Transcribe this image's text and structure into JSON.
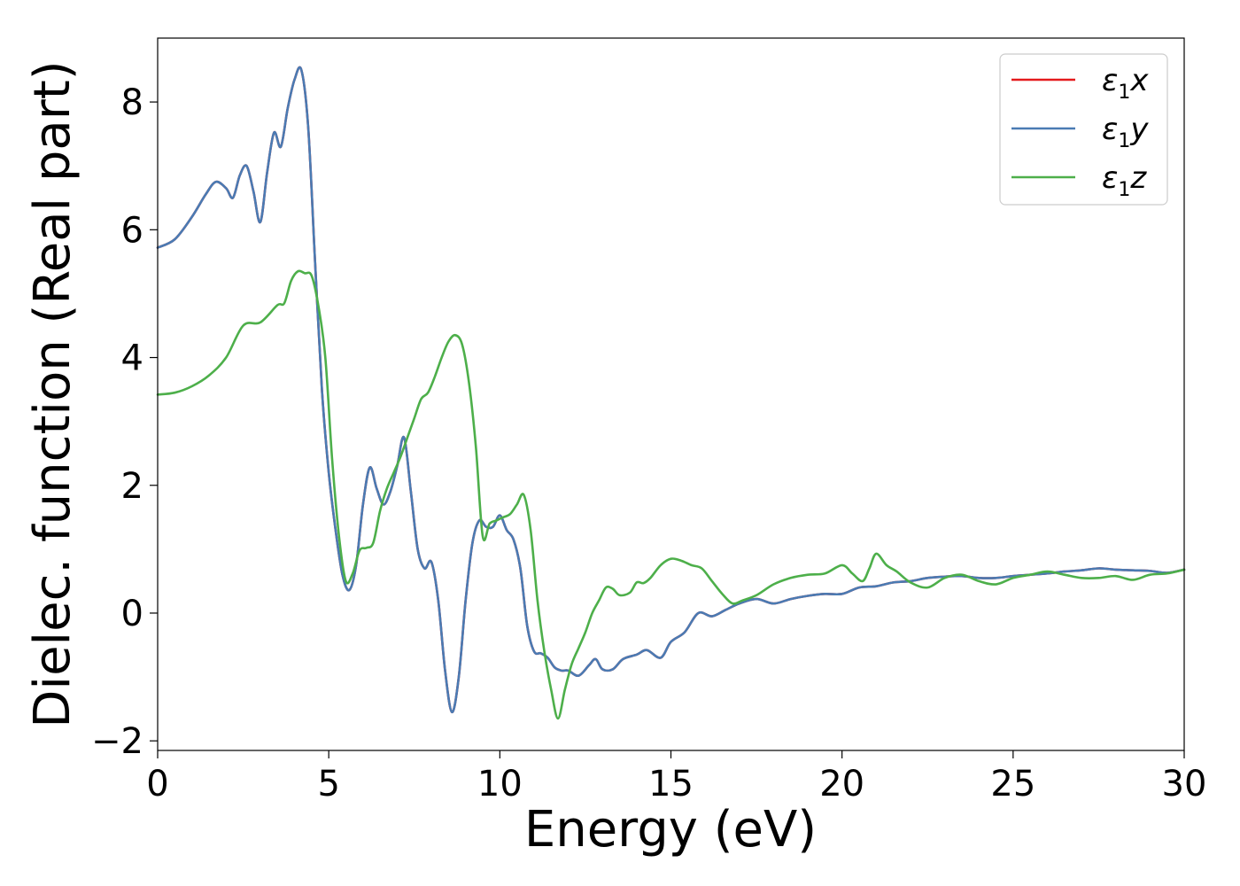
{
  "chart_data": {
    "type": "line",
    "title": "",
    "xlabel": "Energy (eV)",
    "ylabel": "Dielec. function (Real part)",
    "xlim": [
      0,
      30
    ],
    "ylim": [
      -2.15,
      9.0
    ],
    "xticks": [
      0,
      5,
      10,
      15,
      20,
      25,
      30
    ],
    "yticks": [
      -2,
      0,
      2,
      4,
      6,
      8
    ],
    "xtick_labels": [
      "0",
      "5",
      "10",
      "15",
      "20",
      "25",
      "30"
    ],
    "ytick_labels": [
      "−2",
      "0",
      "2",
      "4",
      "6",
      "8"
    ],
    "grid": false,
    "legend_position": "top-right",
    "series": [
      {
        "name": "ε1x",
        "color": "#e41a1c",
        "x": [
          0,
          0.5,
          1.0,
          1.4,
          1.7,
          2.0,
          2.2,
          2.4,
          2.6,
          2.8,
          3.0,
          3.2,
          3.4,
          3.6,
          3.8,
          4.0,
          4.2,
          4.4,
          4.6,
          4.8,
          5.0,
          5.2,
          5.4,
          5.6,
          5.8,
          6.0,
          6.2,
          6.4,
          6.6,
          6.8,
          7.0,
          7.2,
          7.4,
          7.6,
          7.8,
          8.0,
          8.2,
          8.4,
          8.6,
          8.8,
          9.0,
          9.2,
          9.4,
          9.6,
          9.8,
          10.0,
          10.2,
          10.4,
          10.6,
          10.8,
          11.0,
          11.2,
          11.4,
          11.6,
          11.8,
          12.0,
          12.3,
          12.6,
          12.8,
          13.0,
          13.3,
          13.6,
          14.0,
          14.3,
          14.7,
          15.0,
          15.4,
          15.8,
          16.2,
          16.6,
          17.0,
          17.5,
          18.0,
          18.5,
          19.0,
          19.5,
          20.0,
          20.5,
          21.0,
          21.5,
          22.0,
          22.5,
          23.0,
          23.5,
          24.0,
          24.5,
          25.0,
          25.5,
          26.0,
          26.5,
          27.0,
          27.5,
          28.0,
          28.5,
          29.0,
          29.5,
          30.0
        ],
        "y": [
          5.72,
          5.85,
          6.2,
          6.55,
          6.75,
          6.65,
          6.5,
          6.85,
          7.0,
          6.6,
          6.12,
          6.9,
          7.52,
          7.3,
          7.9,
          8.35,
          8.5,
          7.6,
          5.5,
          3.5,
          2.2,
          1.3,
          0.6,
          0.36,
          0.75,
          1.7,
          2.28,
          1.95,
          1.7,
          1.9,
          2.3,
          2.75,
          1.9,
          1.0,
          0.7,
          0.8,
          0.2,
          -0.9,
          -1.55,
          -1.0,
          0.2,
          1.1,
          1.45,
          1.35,
          1.35,
          1.53,
          1.3,
          1.15,
          0.7,
          -0.2,
          -0.6,
          -0.63,
          -0.7,
          -0.85,
          -0.9,
          -0.9,
          -0.98,
          -0.82,
          -0.72,
          -0.88,
          -0.88,
          -0.72,
          -0.65,
          -0.58,
          -0.7,
          -0.45,
          -0.3,
          0.0,
          -0.05,
          0.05,
          0.15,
          0.22,
          0.15,
          0.22,
          0.27,
          0.3,
          0.3,
          0.4,
          0.42,
          0.48,
          0.5,
          0.55,
          0.57,
          0.58,
          0.55,
          0.55,
          0.58,
          0.6,
          0.62,
          0.65,
          0.67,
          0.7,
          0.68,
          0.67,
          0.66,
          0.63,
          0.68
        ]
      },
      {
        "name": "ε1y",
        "color": "#4a7bb3",
        "x": [
          0,
          0.5,
          1.0,
          1.4,
          1.7,
          2.0,
          2.2,
          2.4,
          2.6,
          2.8,
          3.0,
          3.2,
          3.4,
          3.6,
          3.8,
          4.0,
          4.2,
          4.4,
          4.6,
          4.8,
          5.0,
          5.2,
          5.4,
          5.6,
          5.8,
          6.0,
          6.2,
          6.4,
          6.6,
          6.8,
          7.0,
          7.2,
          7.4,
          7.6,
          7.8,
          8.0,
          8.2,
          8.4,
          8.6,
          8.8,
          9.0,
          9.2,
          9.4,
          9.6,
          9.8,
          10.0,
          10.2,
          10.4,
          10.6,
          10.8,
          11.0,
          11.2,
          11.4,
          11.6,
          11.8,
          12.0,
          12.3,
          12.6,
          12.8,
          13.0,
          13.3,
          13.6,
          14.0,
          14.3,
          14.7,
          15.0,
          15.4,
          15.8,
          16.2,
          16.6,
          17.0,
          17.5,
          18.0,
          18.5,
          19.0,
          19.5,
          20.0,
          20.5,
          21.0,
          21.5,
          22.0,
          22.5,
          23.0,
          23.5,
          24.0,
          24.5,
          25.0,
          25.5,
          26.0,
          26.5,
          27.0,
          27.5,
          28.0,
          28.5,
          29.0,
          29.5,
          30.0
        ],
        "y": [
          5.72,
          5.85,
          6.2,
          6.55,
          6.75,
          6.65,
          6.5,
          6.85,
          7.0,
          6.6,
          6.12,
          6.9,
          7.52,
          7.3,
          7.9,
          8.35,
          8.5,
          7.6,
          5.5,
          3.5,
          2.2,
          1.3,
          0.6,
          0.36,
          0.75,
          1.7,
          2.28,
          1.95,
          1.7,
          1.9,
          2.3,
          2.75,
          1.9,
          1.0,
          0.7,
          0.8,
          0.2,
          -0.9,
          -1.55,
          -1.0,
          0.2,
          1.1,
          1.45,
          1.35,
          1.35,
          1.53,
          1.3,
          1.15,
          0.7,
          -0.2,
          -0.6,
          -0.63,
          -0.7,
          -0.85,
          -0.9,
          -0.9,
          -0.98,
          -0.82,
          -0.72,
          -0.88,
          -0.88,
          -0.72,
          -0.65,
          -0.58,
          -0.7,
          -0.45,
          -0.3,
          0.0,
          -0.05,
          0.05,
          0.15,
          0.22,
          0.15,
          0.22,
          0.27,
          0.3,
          0.3,
          0.4,
          0.42,
          0.48,
          0.5,
          0.55,
          0.57,
          0.58,
          0.55,
          0.55,
          0.58,
          0.6,
          0.62,
          0.65,
          0.67,
          0.7,
          0.68,
          0.67,
          0.66,
          0.63,
          0.68
        ]
      },
      {
        "name": "ε1z",
        "color": "#4daf4a",
        "x": [
          0,
          0.5,
          1.0,
          1.5,
          2.0,
          2.5,
          3.0,
          3.5,
          3.7,
          3.9,
          4.1,
          4.3,
          4.5,
          4.7,
          4.9,
          5.1,
          5.3,
          5.5,
          5.7,
          5.9,
          6.1,
          6.3,
          6.5,
          6.7,
          6.9,
          7.1,
          7.3,
          7.5,
          7.7,
          7.9,
          8.1,
          8.3,
          8.5,
          8.7,
          8.9,
          9.1,
          9.3,
          9.5,
          9.7,
          9.9,
          10.1,
          10.3,
          10.5,
          10.7,
          10.9,
          11.1,
          11.3,
          11.5,
          11.7,
          11.9,
          12.1,
          12.3,
          12.5,
          12.7,
          12.9,
          13.1,
          13.3,
          13.5,
          13.8,
          14.0,
          14.2,
          14.4,
          14.7,
          15.0,
          15.3,
          15.6,
          15.9,
          16.2,
          16.5,
          16.8,
          17.1,
          17.5,
          18.0,
          18.5,
          19.0,
          19.5,
          20.0,
          20.3,
          20.6,
          20.8,
          21.0,
          21.3,
          21.6,
          22.0,
          22.5,
          23.0,
          23.5,
          24.0,
          24.5,
          25.0,
          25.5,
          26.0,
          26.5,
          27.0,
          27.5,
          28.0,
          28.5,
          29.0,
          29.5,
          30.0
        ],
        "y": [
          3.42,
          3.45,
          3.55,
          3.72,
          4.0,
          4.5,
          4.55,
          4.82,
          4.85,
          5.2,
          5.35,
          5.32,
          5.28,
          4.8,
          4.0,
          2.4,
          1.2,
          0.5,
          0.62,
          0.98,
          1.02,
          1.1,
          1.6,
          1.95,
          2.2,
          2.45,
          2.75,
          3.05,
          3.35,
          3.45,
          3.7,
          4.0,
          4.25,
          4.35,
          4.2,
          3.6,
          2.6,
          1.2,
          1.4,
          1.45,
          1.5,
          1.55,
          1.7,
          1.85,
          1.3,
          0.2,
          -0.6,
          -1.2,
          -1.65,
          -1.2,
          -0.8,
          -0.55,
          -0.3,
          0.0,
          0.2,
          0.4,
          0.38,
          0.28,
          0.32,
          0.48,
          0.47,
          0.55,
          0.75,
          0.85,
          0.82,
          0.75,
          0.7,
          0.5,
          0.3,
          0.15,
          0.2,
          0.28,
          0.45,
          0.55,
          0.6,
          0.62,
          0.75,
          0.62,
          0.5,
          0.7,
          0.93,
          0.75,
          0.65,
          0.48,
          0.4,
          0.55,
          0.6,
          0.5,
          0.45,
          0.55,
          0.6,
          0.65,
          0.6,
          0.55,
          0.55,
          0.58,
          0.52,
          0.6,
          0.62,
          0.68
        ]
      }
    ]
  }
}
